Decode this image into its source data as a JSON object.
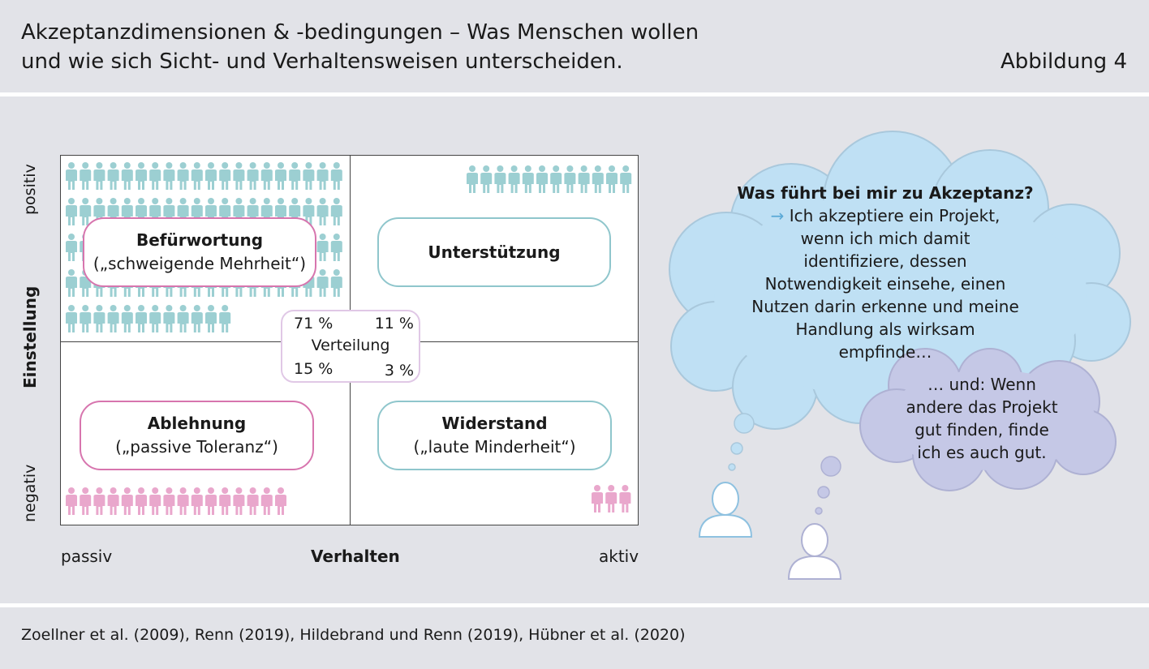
{
  "header": {
    "title_line1": "Akzeptanzdimensionen & -bedingungen – Was Menschen wollen",
    "title_line2": "und wie sich Sicht- und Verhaltensweisen unterscheiden.",
    "figure_label": "Abbildung 4"
  },
  "diagram": {
    "y_axis": {
      "label": "Einstellung",
      "top": "positiv",
      "bottom": "negativ"
    },
    "x_axis": {
      "label": "Verhalten",
      "left": "passiv",
      "right": "aktiv"
    },
    "quadrants": {
      "top_left": {
        "title": "Befürwortung",
        "subtitle": "(„schweigende Mehrheit“)",
        "color": "#d775ae"
      },
      "top_right": {
        "title": "Unterstützung",
        "subtitle": "",
        "color": "#8fc6cc"
      },
      "bottom_left": {
        "title": "Ablehnung",
        "subtitle": "(„passive Toleranz“)",
        "color": "#d775ae"
      },
      "bottom_right": {
        "title": "Widerstand",
        "subtitle": "(„laute Minderheit“)",
        "color": "#8fc6cc"
      }
    },
    "distribution": {
      "label": "Verteilung",
      "top_left": "71 %",
      "top_right": "11 %",
      "bottom_left": "15 %",
      "bottom_right": "3 %"
    },
    "colors": {
      "teal_people": "#9ccfd2",
      "pink_people": "#e9a7cc",
      "frame": "#444444"
    }
  },
  "thoughts": {
    "cloud1": {
      "heading": "Was führt bei mir zu Akzeptanz?",
      "arrow": "→",
      "lines": [
        "Ich akzeptiere ein Projekt,",
        "wenn ich mich damit",
        "identifiziere, dessen",
        "Notwendigkeit einsehe, einen",
        "Nutzen darin erkenne und meine",
        "Handlung als wirksam",
        "empfinde…"
      ],
      "color": "#bfe0f4"
    },
    "cloud2": {
      "lines": [
        "… und: Wenn",
        "andere das Projekt",
        "gut finden, finde",
        "ich es auch gut."
      ],
      "color": "#c5c8e6"
    }
  },
  "footer": {
    "sources": "Zoellner et al. (2009), Renn (2019), Hildebrand und Renn (2019), Hübner et al. (2020)"
  }
}
